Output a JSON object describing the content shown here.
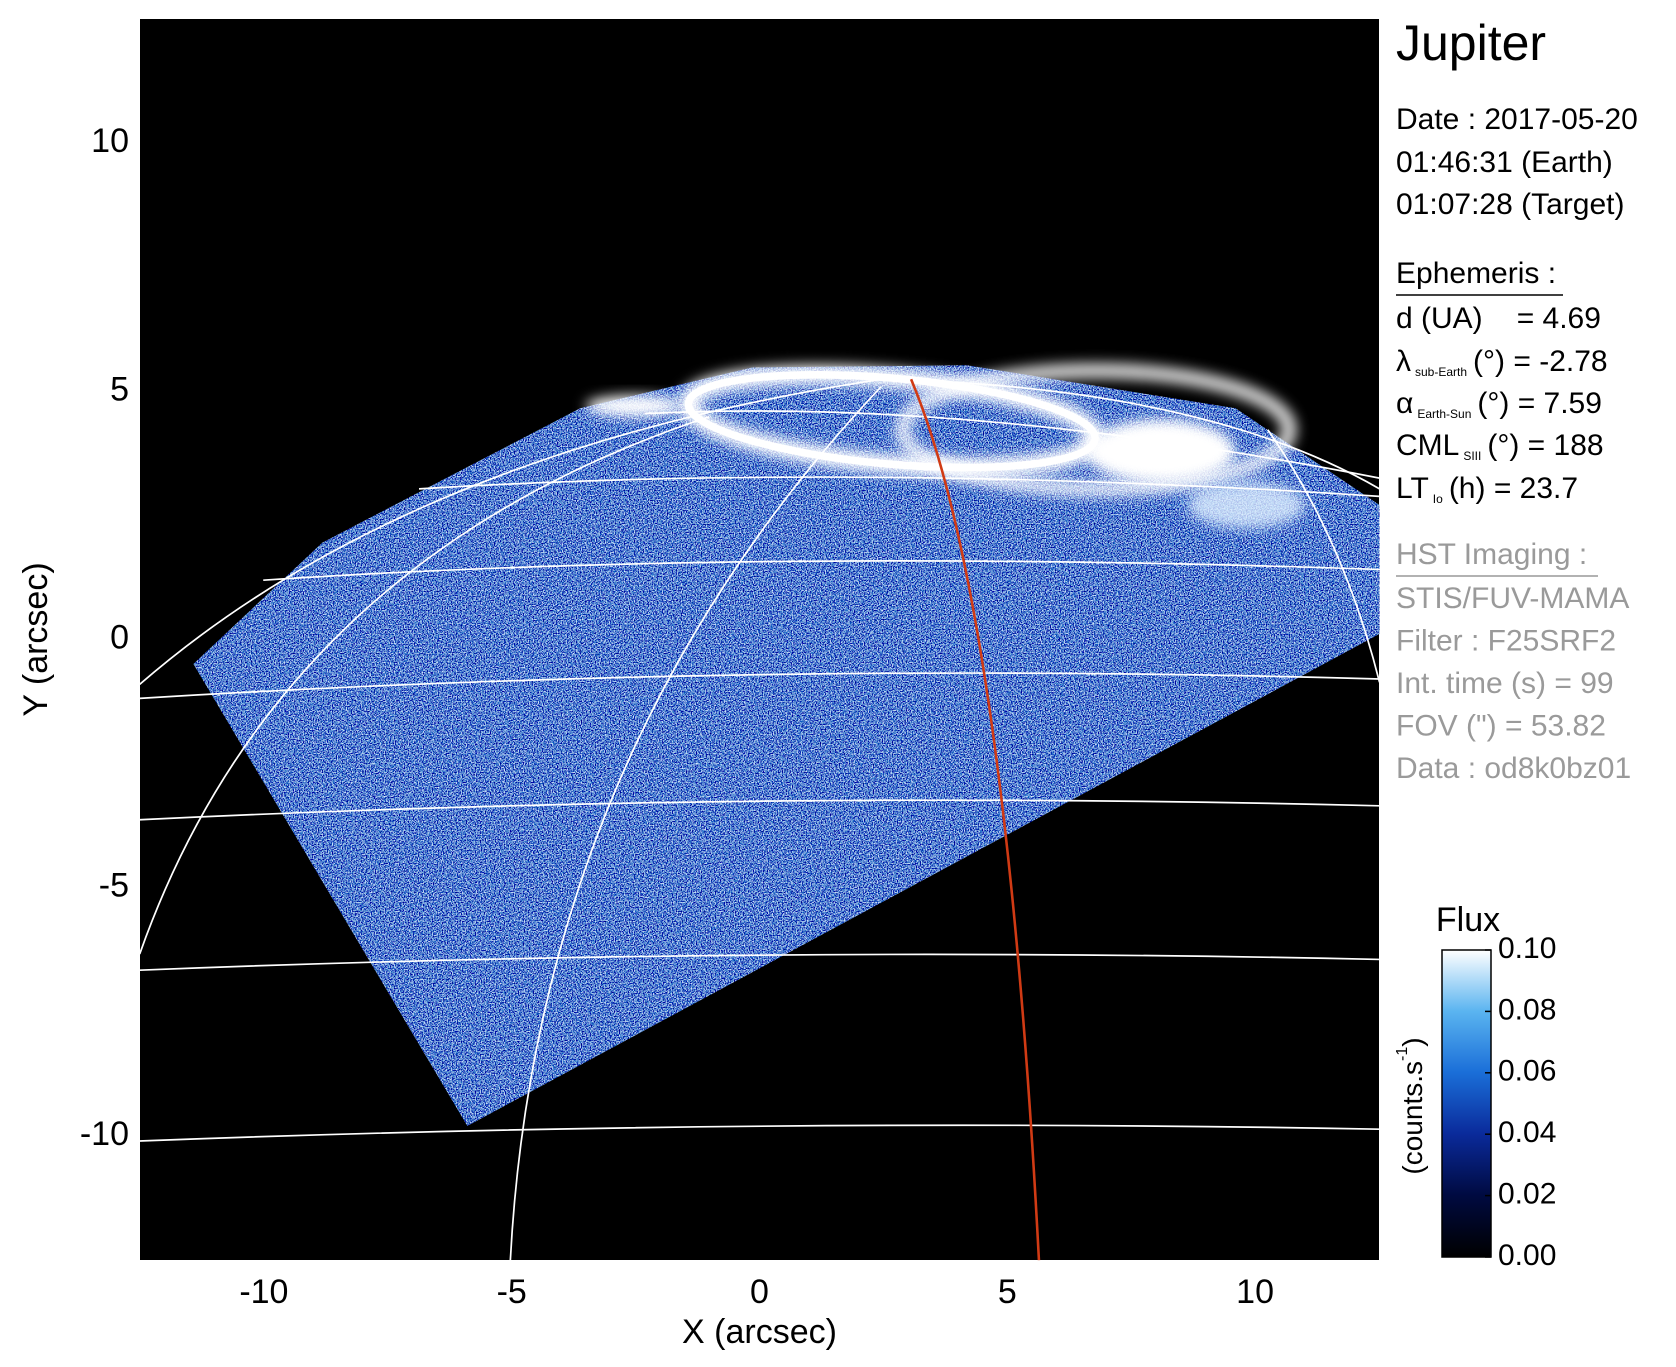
{
  "chart_data": {
    "type": "image",
    "title": "Jupiter",
    "xlabel": "X (arcsec)",
    "ylabel": "Y (arcsec)",
    "xlim": [
      -12.5,
      12.5
    ],
    "ylim": [
      -12.5,
      12.5
    ],
    "xticks": [
      -10,
      -5,
      0,
      5,
      10
    ],
    "yticks": [
      -10,
      -5,
      0,
      5,
      10
    ],
    "colorbar": {
      "label": "Flux",
      "unit": "(counts.s",
      "unit_exp": "-1",
      "unit_end": ")",
      "lim": [
        0,
        0.1
      ],
      "ticks": [
        {
          "value": 0,
          "label": "0.00"
        },
        {
          "value": 0.02,
          "label": "0.02"
        },
        {
          "value": 0.04,
          "label": "0.04"
        },
        {
          "value": 0.06,
          "label": "0.06"
        },
        {
          "value": 0.08,
          "label": "0.08"
        },
        {
          "value": 0.1,
          "label": "0.10"
        }
      ],
      "colors": [
        "#000000",
        "#000a40",
        "#0a2a9a",
        "#1a6ed8",
        "#5ab4f0",
        "#ffffff"
      ]
    }
  },
  "info": {
    "date": "Date : 2017-05-20",
    "time_earth": "01:46:31 (Earth)",
    "time_target": "01:07:28 (Target)",
    "ephemeris": {
      "title": "Ephemeris :",
      "items": [
        {
          "label": "d (UA)",
          "text": "= 4.69"
        },
        {
          "label": "λ",
          "sub": "sub-Earth",
          "text": "(°) = -2.78"
        },
        {
          "label": "α",
          "sub": "Earth-Sun",
          "text": "(°) = 7.59"
        },
        {
          "label": "CML",
          "sub": "SIII",
          "text": "(°) = 188"
        },
        {
          "label": "LT",
          "sub": "Io",
          "text": "(h) = 23.7"
        }
      ]
    },
    "imaging": {
      "title": "HST Imaging :",
      "lines": [
        "STIS/FUV-MAMA",
        "Filter : F25SRF2",
        "Int. time (s) = 99",
        "FOV (\") = 53.82",
        "Data : od8k0bz01"
      ]
    }
  }
}
